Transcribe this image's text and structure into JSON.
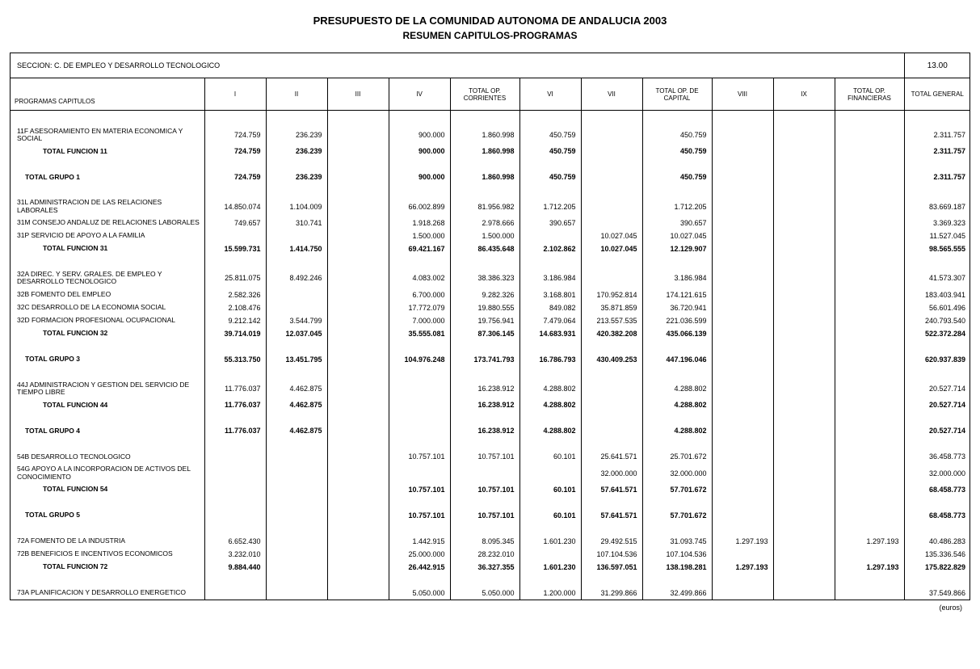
{
  "titles": {
    "main": "PRESUPUESTO DE LA COMUNIDAD AUTONOMA DE ANDALUCIA 2003",
    "sub": "RESUMEN CAPITULOS-PROGRAMAS"
  },
  "section": {
    "label": "SECCION: C. DE EMPLEO Y DESARROLLO TECNOLOGICO",
    "code": "13.00"
  },
  "columns": {
    "programas_sub": "PROGRAMAS",
    "capitulos": "CAPITULOS",
    "c1": "I",
    "c2": "II",
    "c3": "III",
    "c4": "IV",
    "total_corrientes": "TOTAL OP. CORRIENTES",
    "c6": "VI",
    "c7": "VII",
    "total_capital": "TOTAL OP. DE CAPITAL",
    "c8": "VIII",
    "c9": "IX",
    "total_fin": "TOTAL OP. FINANCIERAS",
    "total_gen": "TOTAL GENERAL"
  },
  "rows": [
    {
      "label": "11F ASESORAMIENTO EN MATERIA ECONOMICA Y SOCIAL",
      "style": "normal",
      "v": {
        "c1": "724.759",
        "c2": "236.239",
        "c4": "900.000",
        "tc": "1.860.998",
        "c6": "450.759",
        "tcap": "450.759",
        "tg": "2.311.757"
      }
    },
    {
      "label": "TOTAL FUNCION 11",
      "style": "indent-bold",
      "v": {
        "c1": "724.759",
        "c2": "236.239",
        "c4": "900.000",
        "tc": "1.860.998",
        "c6": "450.759",
        "tcap": "450.759",
        "tg": "2.311.757"
      }
    },
    {
      "label": "TOTAL GRUPO 1",
      "style": "tg-bold",
      "v": {
        "c1": "724.759",
        "c2": "236.239",
        "c4": "900.000",
        "tc": "1.860.998",
        "c6": "450.759",
        "tcap": "450.759",
        "tg": "2.311.757"
      }
    },
    {
      "label": "31L ADMINISTRACION DE LAS RELACIONES LABORALES",
      "style": "normal",
      "v": {
        "c1": "14.850.074",
        "c2": "1.104.009",
        "c4": "66.002.899",
        "tc": "81.956.982",
        "c6": "1.712.205",
        "tcap": "1.712.205",
        "tg": "83.669.187"
      }
    },
    {
      "label": "31M CONSEJO ANDALUZ DE RELACIONES LABORALES",
      "style": "normal",
      "v": {
        "c1": "749.657",
        "c2": "310.741",
        "c4": "1.918.268",
        "tc": "2.978.666",
        "c6": "390.657",
        "tcap": "390.657",
        "tg": "3.369.323"
      }
    },
    {
      "label": "31P SERVICIO DE APOYO A LA FAMILIA",
      "style": "normal",
      "v": {
        "c4": "1.500.000",
        "tc": "1.500.000",
        "c7": "10.027.045",
        "tcap": "10.027.045",
        "tg": "11.527.045"
      }
    },
    {
      "label": "TOTAL FUNCION 31",
      "style": "indent-bold",
      "v": {
        "c1": "15.599.731",
        "c2": "1.414.750",
        "c4": "69.421.167",
        "tc": "86.435.648",
        "c6": "2.102.862",
        "c7": "10.027.045",
        "tcap": "12.129.907",
        "tg": "98.565.555"
      }
    },
    {
      "label": "32A DIREC. Y SERV. GRALES. DE EMPLEO Y DESARROLLO TECNOLOGICO",
      "style": "normal",
      "v": {
        "c1": "25.811.075",
        "c2": "8.492.246",
        "c4": "4.083.002",
        "tc": "38.386.323",
        "c6": "3.186.984",
        "tcap": "3.186.984",
        "tg": "41.573.307"
      }
    },
    {
      "label": "32B FOMENTO DEL EMPLEO",
      "style": "normal",
      "v": {
        "c1": "2.582.326",
        "c4": "6.700.000",
        "tc": "9.282.326",
        "c6": "3.168.801",
        "c7": "170.952.814",
        "tcap": "174.121.615",
        "tg": "183.403.941"
      }
    },
    {
      "label": "32C DESARROLLO DE LA ECONOMIA SOCIAL",
      "style": "normal",
      "v": {
        "c1": "2.108.476",
        "c4": "17.772.079",
        "tc": "19.880.555",
        "c6": "849.082",
        "c7": "35.871.859",
        "tcap": "36.720.941",
        "tg": "56.601.496"
      }
    },
    {
      "label": "32D FORMACION PROFESIONAL OCUPACIONAL",
      "style": "normal",
      "v": {
        "c1": "9.212.142",
        "c2": "3.544.799",
        "c4": "7.000.000",
        "tc": "19.756.941",
        "c6": "7.479.064",
        "c7": "213.557.535",
        "tcap": "221.036.599",
        "tg": "240.793.540"
      }
    },
    {
      "label": "TOTAL FUNCION 32",
      "style": "indent-bold",
      "v": {
        "c1": "39.714.019",
        "c2": "12.037.045",
        "c4": "35.555.081",
        "tc": "87.306.145",
        "c6": "14.683.931",
        "c7": "420.382.208",
        "tcap": "435.066.139",
        "tg": "522.372.284"
      }
    },
    {
      "label": "TOTAL GRUPO 3",
      "style": "tg-bold",
      "v": {
        "c1": "55.313.750",
        "c2": "13.451.795",
        "c4": "104.976.248",
        "tc": "173.741.793",
        "c6": "16.786.793",
        "c7": "430.409.253",
        "tcap": "447.196.046",
        "tg": "620.937.839"
      }
    },
    {
      "label": "44J ADMINISTRACION Y GESTION DEL SERVICIO DE TIEMPO LIBRE",
      "style": "normal",
      "v": {
        "c1": "11.776.037",
        "c2": "4.462.875",
        "tc": "16.238.912",
        "c6": "4.288.802",
        "tcap": "4.288.802",
        "tg": "20.527.714"
      }
    },
    {
      "label": "TOTAL FUNCION 44",
      "style": "indent-bold",
      "v": {
        "c1": "11.776.037",
        "c2": "4.462.875",
        "tc": "16.238.912",
        "c6": "4.288.802",
        "tcap": "4.288.802",
        "tg": "20.527.714"
      }
    },
    {
      "label": "TOTAL GRUPO 4",
      "style": "tg-bold",
      "v": {
        "c1": "11.776.037",
        "c2": "4.462.875",
        "tc": "16.238.912",
        "c6": "4.288.802",
        "tcap": "4.288.802",
        "tg": "20.527.714"
      }
    },
    {
      "label": "54B DESARROLLO TECNOLOGICO",
      "style": "normal",
      "v": {
        "c4": "10.757.101",
        "tc": "10.757.101",
        "c6": "60.101",
        "c7": "25.641.571",
        "tcap": "25.701.672",
        "tg": "36.458.773"
      }
    },
    {
      "label": "54G APOYO A LA INCORPORACION DE ACTIVOS DEL CONOCIMIENTO",
      "style": "normal",
      "v": {
        "c7": "32.000.000",
        "tcap": "32.000.000",
        "tg": "32.000.000"
      }
    },
    {
      "label": "TOTAL FUNCION 54",
      "style": "indent-bold",
      "v": {
        "c4": "10.757.101",
        "tc": "10.757.101",
        "c6": "60.101",
        "c7": "57.641.571",
        "tcap": "57.701.672",
        "tg": "68.458.773"
      }
    },
    {
      "label": "TOTAL GRUPO 5",
      "style": "tg-bold",
      "v": {
        "c4": "10.757.101",
        "tc": "10.757.101",
        "c6": "60.101",
        "c7": "57.641.571",
        "tcap": "57.701.672",
        "tg": "68.458.773"
      }
    },
    {
      "label": "72A FOMENTO DE LA INDUSTRIA",
      "style": "normal",
      "v": {
        "c1": "6.652.430",
        "c4": "1.442.915",
        "tc": "8.095.345",
        "c6": "1.601.230",
        "c7": "29.492.515",
        "tcap": "31.093.745",
        "c8": "1.297.193",
        "tf": "1.297.193",
        "tg": "40.486.283"
      }
    },
    {
      "label": "72B BENEFICIOS E INCENTIVOS ECONOMICOS",
      "style": "normal",
      "v": {
        "c1": "3.232.010",
        "c4": "25.000.000",
        "tc": "28.232.010",
        "c7": "107.104.536",
        "tcap": "107.104.536",
        "tg": "135.336.546"
      }
    },
    {
      "label": "TOTAL FUNCION 72",
      "style": "indent-bold",
      "v": {
        "c1": "9.884.440",
        "c4": "26.442.915",
        "tc": "36.327.355",
        "c6": "1.601.230",
        "c7": "136.597.051",
        "tcap": "138.198.281",
        "c8": "1.297.193",
        "tf": "1.297.193",
        "tg": "175.822.829"
      }
    },
    {
      "label": "73A PLANIFICACION Y DESARROLLO ENERGETICO",
      "style": "normal",
      "v": {
        "c4": "5.050.000",
        "tc": "5.050.000",
        "c6": "1.200.000",
        "c7": "31.299.866",
        "tcap": "32.499.866",
        "tg": "37.549.866"
      }
    }
  ],
  "footer": {
    "unit": "(euros)"
  },
  "col_keys": [
    "c1",
    "c2",
    "c3",
    "c4",
    "tc",
    "c6",
    "c7",
    "tcap",
    "c8",
    "c9",
    "tf",
    "tg"
  ],
  "spacer_after": [
    "TOTAL GRUPO 1",
    "TOTAL FUNCION 31",
    "TOTAL FUNCION 32",
    "TOTAL GRUPO 3",
    "TOTAL FUNCION 44",
    "TOTAL GRUPO 4",
    "TOTAL FUNCION 54",
    "TOTAL GRUPO 5",
    "TOTAL FUNCION 72",
    "TOTAL FUNCION 11"
  ]
}
